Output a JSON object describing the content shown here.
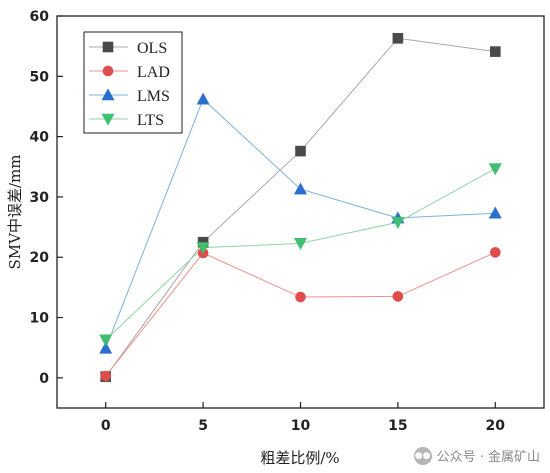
{
  "chart_data": {
    "type": "line",
    "x": [
      0,
      5,
      10,
      15,
      20
    ],
    "xlabel": "粗差比例/%",
    "ylabel": "SMV中误差/mm",
    "xlim": [
      -2.5,
      22.5
    ],
    "ylim": [
      -5,
      60
    ],
    "xticks": [
      0,
      5,
      10,
      15,
      20
    ],
    "yticks": [
      0,
      10,
      20,
      30,
      40,
      50,
      60
    ],
    "grid": false,
    "legend_position": "top-left",
    "series": [
      {
        "name": "OLS",
        "marker": "square",
        "color": "#4a4a4a",
        "line_color": "#a9a9a9",
        "values": [
          0.2,
          22.5,
          37.6,
          56.3,
          54.1
        ]
      },
      {
        "name": "LAD",
        "marker": "circle",
        "color": "#e04b4b",
        "line_color": "#ee8f8f",
        "values": [
          0.3,
          20.7,
          13.4,
          13.5,
          20.8
        ]
      },
      {
        "name": "LMS",
        "marker": "triangle-up",
        "color": "#2a6fd0",
        "line_color": "#7fb1d6",
        "values": [
          4.9,
          46.2,
          31.3,
          26.5,
          27.3
        ]
      },
      {
        "name": "LTS",
        "marker": "triangle-down",
        "color": "#3fbf70",
        "line_color": "#8fd5a8",
        "values": [
          6.3,
          21.6,
          22.3,
          25.8,
          34.7
        ]
      }
    ]
  },
  "watermark": {
    "text": "公众号 · 金属矿山",
    "icon": "wechat-icon"
  }
}
